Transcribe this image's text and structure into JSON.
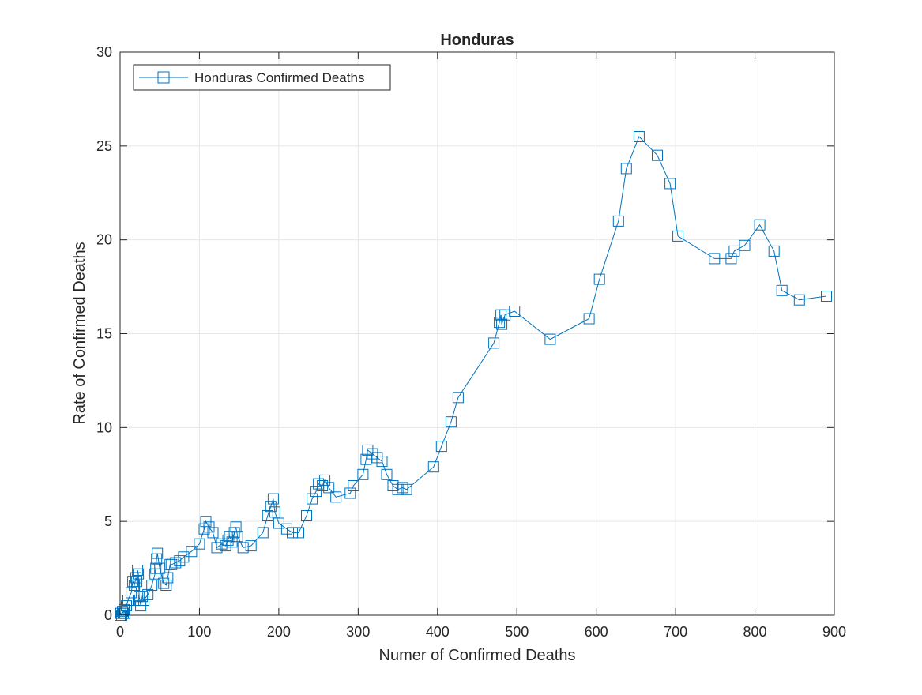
{
  "chart_data": {
    "type": "line",
    "title": "Honduras",
    "xlabel": "Numer of Confirmed Deaths",
    "ylabel": "Rate of Confirmed Deaths",
    "xlim": [
      0,
      900
    ],
    "ylim": [
      0,
      30
    ],
    "xticks": [
      0,
      100,
      200,
      300,
      400,
      500,
      600,
      700,
      800,
      900
    ],
    "yticks": [
      0,
      5,
      10,
      15,
      20,
      25,
      30
    ],
    "grid": true,
    "legend_position": "top-left",
    "series": [
      {
        "name": "Honduras Confirmed Deaths",
        "color": "#0072bd",
        "marker": "square",
        "x": [
          0,
          1,
          2,
          3,
          4,
          5,
          6,
          8,
          10,
          14,
          16,
          18,
          20,
          21,
          22,
          23,
          24,
          25,
          26,
          28,
          30,
          35,
          40,
          44,
          45,
          46,
          47,
          50,
          55,
          58,
          60,
          63,
          65,
          70,
          75,
          80,
          90,
          100,
          106,
          108,
          112,
          117,
          122,
          128,
          133,
          136,
          138,
          141,
          144,
          146,
          148,
          155,
          165,
          180,
          186,
          190,
          193,
          195,
          200,
          210,
          217,
          225,
          235,
          242,
          247,
          250,
          255,
          258,
          263,
          272,
          290,
          294,
          306,
          310,
          312,
          318,
          324,
          330,
          336,
          344,
          350,
          356,
          361,
          395,
          405,
          417,
          426,
          471,
          478,
          480,
          481,
          485,
          497,
          542,
          591,
          604,
          628,
          638,
          654,
          677,
          693,
          703,
          749,
          770,
          774,
          787,
          806,
          824,
          834,
          856,
          890
        ],
        "y": [
          0,
          0.1,
          0,
          0.2,
          0.1,
          0.3,
          0.1,
          0.5,
          0.8,
          1.2,
          1.8,
          1.6,
          2.0,
          1.8,
          2.4,
          2.2,
          1.0,
          0.8,
          0.5,
          1.0,
          0.8,
          1.1,
          1.6,
          2.2,
          2.5,
          3.0,
          3.3,
          2.5,
          1.7,
          1.6,
          2.0,
          2.7,
          2.7,
          2.8,
          2.9,
          3.1,
          3.4,
          3.8,
          4.6,
          5.0,
          4.7,
          4.4,
          3.6,
          3.8,
          3.7,
          4.0,
          4.2,
          3.9,
          4.4,
          4.7,
          4.2,
          3.6,
          3.7,
          4.4,
          5.3,
          5.8,
          6.2,
          5.5,
          4.9,
          4.6,
          4.4,
          4.4,
          5.3,
          6.2,
          6.6,
          7.0,
          6.9,
          7.2,
          6.8,
          6.3,
          6.5,
          6.9,
          7.5,
          8.3,
          8.8,
          8.6,
          8.4,
          8.2,
          7.5,
          6.9,
          6.7,
          6.8,
          6.7,
          7.9,
          9.0,
          10.3,
          11.6,
          14.5,
          15.6,
          16.0,
          15.5,
          16.0,
          16.2,
          14.7,
          15.8,
          17.9,
          21.0,
          23.8,
          25.5,
          24.5,
          23.0,
          20.2,
          19.0,
          19.0,
          19.4,
          19.7,
          20.8,
          19.4,
          17.3,
          16.8,
          17.0
        ]
      }
    ]
  }
}
